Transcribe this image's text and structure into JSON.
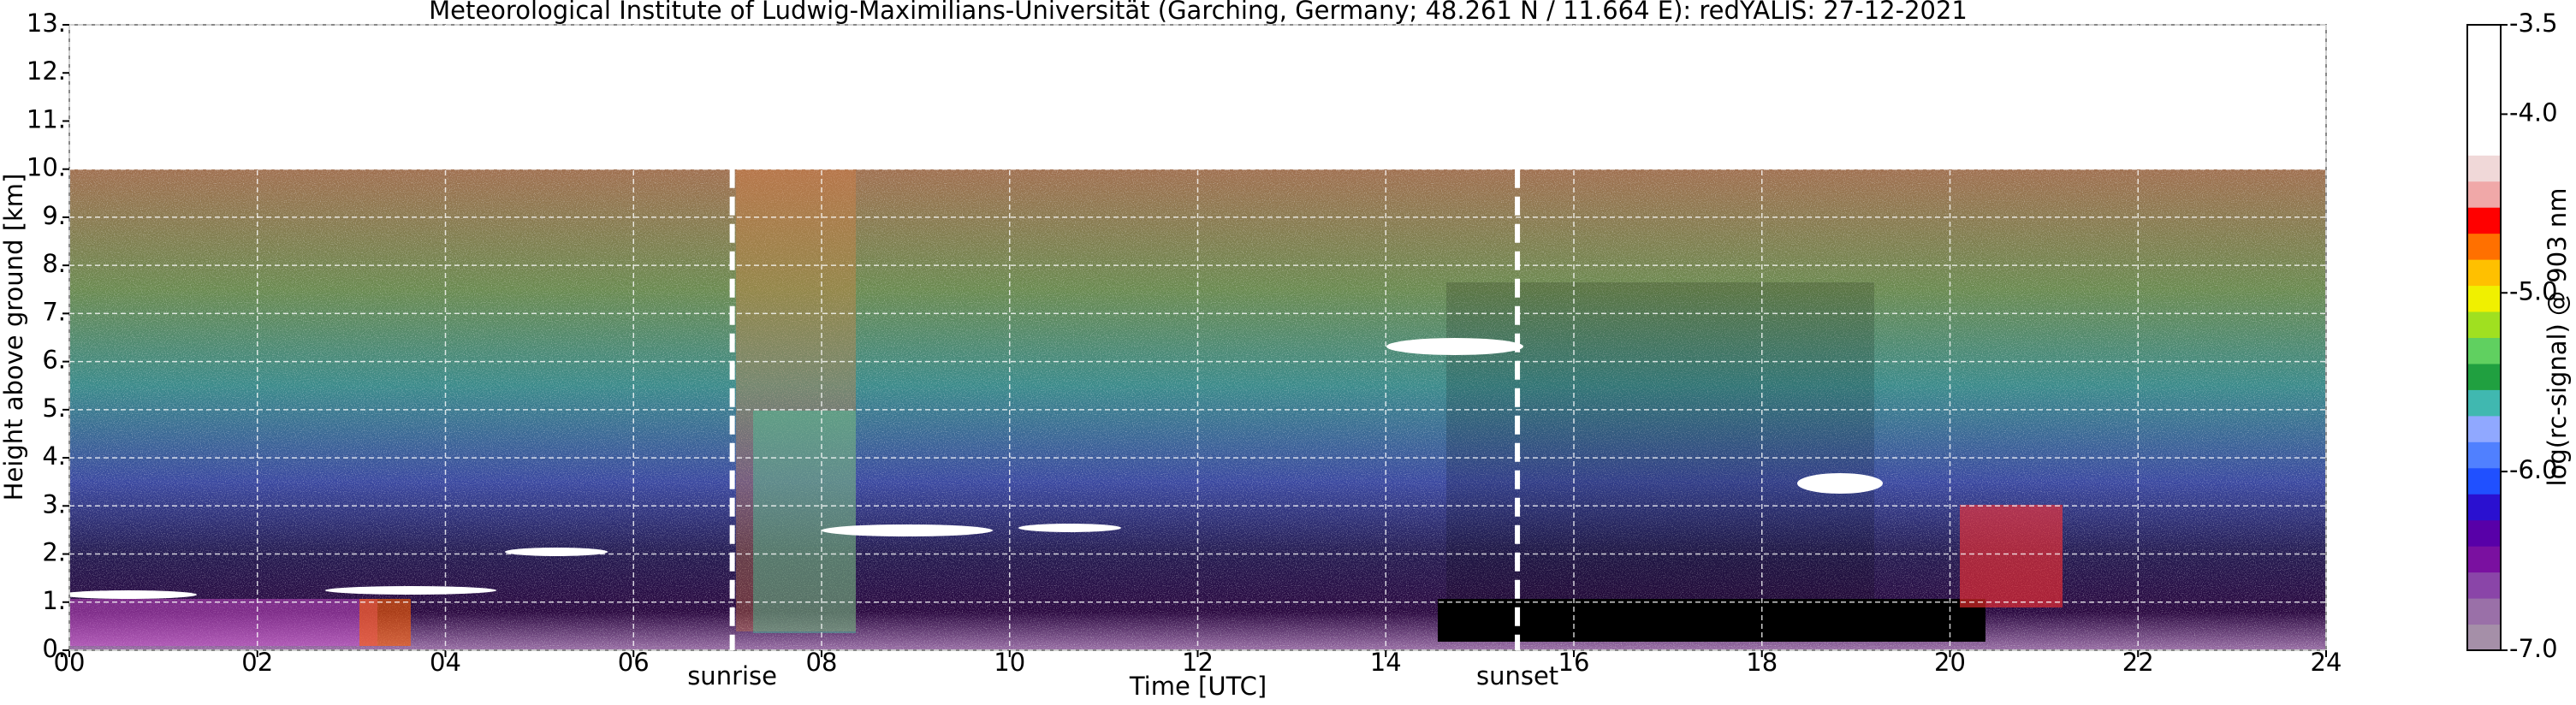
{
  "chart_data": {
    "type": "heatmap",
    "title": "Meteorological Institute of Ludwig-Maximilians-Universität (Garching, Germany; 48.261 N / 11.664 E):    redYALIS: 27-12-2021",
    "xlabel": "Time [UTC]",
    "ylabel": "Height above ground [km]",
    "xlim": [
      0,
      24
    ],
    "xticks": [
      {
        "value": 0,
        "label": "00"
      },
      {
        "value": 2,
        "label": "02"
      },
      {
        "value": 4,
        "label": "04"
      },
      {
        "value": 6,
        "label": "06"
      },
      {
        "value": 8,
        "label": "08"
      },
      {
        "value": 10,
        "label": "10"
      },
      {
        "value": 12,
        "label": "12"
      },
      {
        "value": 14,
        "label": "14"
      },
      {
        "value": 16,
        "label": "16"
      },
      {
        "value": 18,
        "label": "18"
      },
      {
        "value": 20,
        "label": "20"
      },
      {
        "value": 22,
        "label": "22"
      },
      {
        "value": 24,
        "label": "24"
      }
    ],
    "ylim": [
      0,
      13
    ],
    "yticks": [
      {
        "value": 0,
        "label": "0."
      },
      {
        "value": 1,
        "label": "1."
      },
      {
        "value": 2,
        "label": "2."
      },
      {
        "value": 3,
        "label": "3."
      },
      {
        "value": 4,
        "label": "4."
      },
      {
        "value": 5,
        "label": "5."
      },
      {
        "value": 6,
        "label": "6."
      },
      {
        "value": 7,
        "label": "7."
      },
      {
        "value": 8,
        "label": "8."
      },
      {
        "value": 9,
        "label": "9."
      },
      {
        "value": 10,
        "label": "10."
      },
      {
        "value": 11,
        "label": "11."
      },
      {
        "value": 12,
        "label": "12."
      },
      {
        "value": 13,
        "label": "13."
      }
    ],
    "grid": true,
    "annotations": [
      {
        "label": "sunrise",
        "x": 7.05
      },
      {
        "label": "sunset",
        "x": 15.4
      }
    ],
    "colorbar": {
      "label": "log(rc-signal) @ 903 nm",
      "lim": [
        -7,
        -3.5
      ],
      "ticks": [
        -7.0,
        -6.0,
        -5.0,
        -4.0,
        -3.5
      ],
      "tick_labels": [
        "-7.0",
        "-6.0",
        "-5.0",
        "-4.0",
        "-3.5"
      ],
      "colors": [
        "#a58fa8",
        "#9a70a8",
        "#8a45a8",
        "#7a10a0",
        "#5800a8",
        "#2a10d0",
        "#2050ff",
        "#5080ff",
        "#90a8ff",
        "#40b8b0",
        "#20a040",
        "#60d060",
        "#a0e020",
        "#f0f000",
        "#ffc000",
        "#ff7000",
        "#ff0000",
        "#f0a8a8",
        "#f0d8d8",
        "#ffffff",
        "#ffffff",
        "#ffffff",
        "#ffffff",
        "#ffffff"
      ]
    }
  }
}
